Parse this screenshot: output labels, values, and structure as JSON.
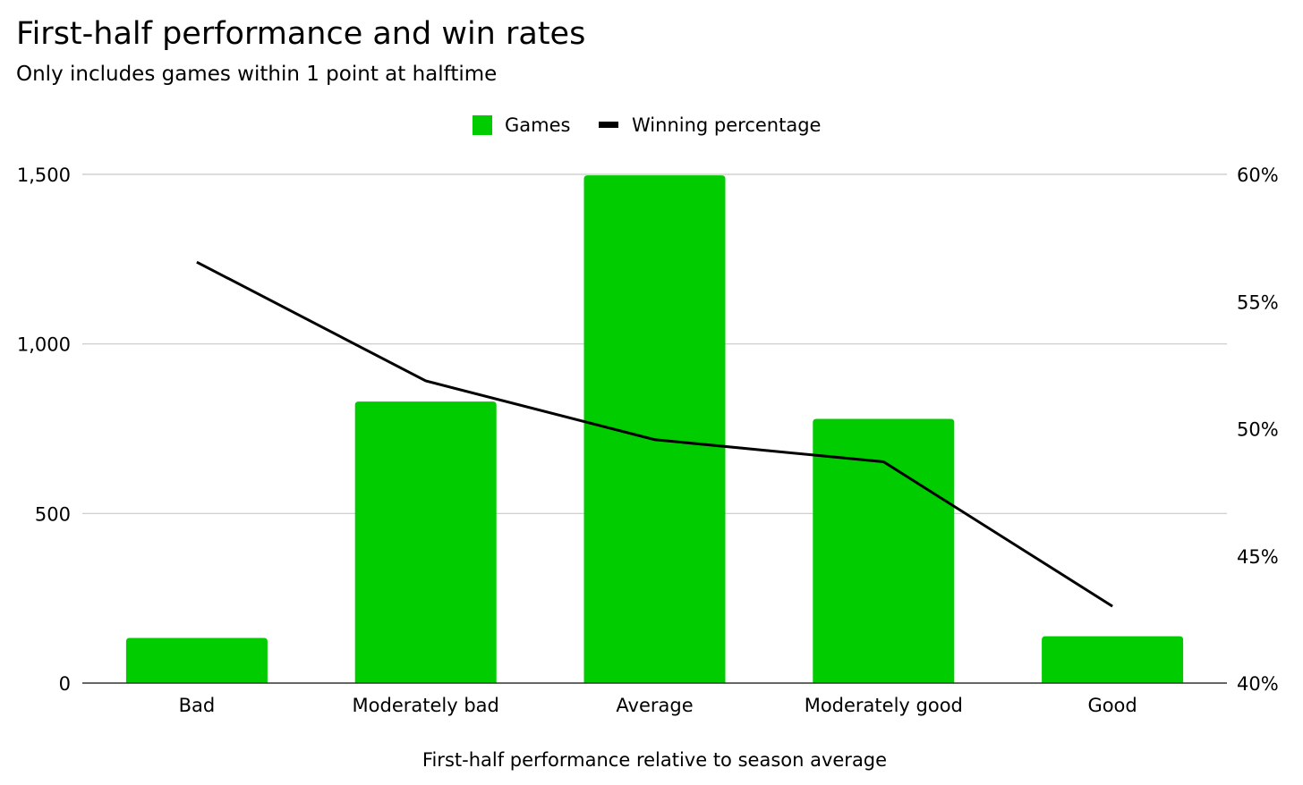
{
  "chart_data": {
    "type": "bar",
    "title": "First-half performance and win rates",
    "subtitle": "Only includes games within 1 point at halftime",
    "xlabel": "First-half performance relative to season average",
    "categories": [
      "Bad",
      "Moderately bad",
      "Average",
      "Moderately good",
      "Good"
    ],
    "series": [
      {
        "name": "Games",
        "type": "bar",
        "axis": "left",
        "color": "#00cc00",
        "values": [
          133,
          830,
          1497,
          779,
          138
        ]
      },
      {
        "name": "Winning percentage",
        "type": "line",
        "axis": "right",
        "color": "#000000",
        "values": [
          0.5655,
          0.5188,
          0.4957,
          0.487,
          0.4302
        ]
      }
    ],
    "y_left": {
      "ylim": [
        0,
        1500
      ],
      "ticks": [
        0,
        500,
        1000,
        1500
      ],
      "tick_labels": [
        "0",
        "500",
        "1,000",
        "1,500"
      ]
    },
    "y_right": {
      "ylim": [
        0.4,
        0.6
      ],
      "ticks": [
        0.4,
        0.45,
        0.5,
        0.55,
        0.6
      ],
      "tick_labels": [
        "40%",
        "45%",
        "50%",
        "55%",
        "60%"
      ]
    },
    "grid": true,
    "legend_position": "top-center"
  }
}
